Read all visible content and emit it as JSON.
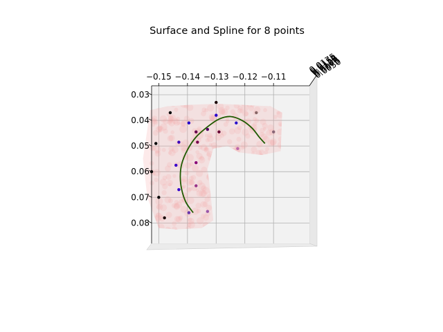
{
  "chart_data": {
    "type": "scatter",
    "title": "Surface and Spline for 8 points",
    "x_axis": {
      "ticks": [
        -0.15,
        -0.14,
        -0.13,
        -0.12,
        -0.11
      ],
      "tick_labels": [
        "−0.15",
        "−0.14",
        "−0.13",
        "−0.12",
        "−0.11"
      ],
      "range": [
        -0.1525,
        -0.0975
      ]
    },
    "y_axis": {
      "ticks": [
        0.03,
        0.04,
        0.05,
        0.06,
        0.07,
        0.08
      ],
      "tick_labels": [
        "0.03",
        "0.04",
        "0.05",
        "0.06",
        "0.07",
        "0.08"
      ],
      "range": [
        0.0265,
        0.088
      ],
      "inverted": true
    },
    "z_axis": {
      "tick_labels": [
        "0.0175",
        "0.0150",
        "0.0125",
        "0.0100",
        "0.0075",
        "0.0050"
      ],
      "note": "labels overlap in the image near the top-right corner"
    },
    "grid": true,
    "colors": {
      "surface": "#f4a0a0",
      "spline": "#1f5a00",
      "pane": "#f2f2f2"
    },
    "spline": {
      "points": [
        [
          -0.138,
          0.076
        ],
        [
          -0.1405,
          0.072
        ],
        [
          -0.142,
          0.067
        ],
        [
          -0.1425,
          0.062
        ],
        [
          -0.142,
          0.057
        ],
        [
          -0.14,
          0.0515
        ],
        [
          -0.137,
          0.0465
        ],
        [
          -0.133,
          0.0425
        ],
        [
          -0.129,
          0.0395
        ],
        [
          -0.125,
          0.0385
        ],
        [
          -0.121,
          0.04
        ],
        [
          -0.1175,
          0.043
        ],
        [
          -0.115,
          0.0465
        ],
        [
          -0.113,
          0.049
        ]
      ]
    },
    "points": [
      {
        "x": -0.146,
        "y": 0.037,
        "color": "#000000"
      },
      {
        "x": -0.13,
        "y": 0.033,
        "color": "#1a0000"
      },
      {
        "x": -0.151,
        "y": 0.049,
        "color": "#000000"
      },
      {
        "x": -0.1525,
        "y": 0.06,
        "color": "#000000"
      },
      {
        "x": -0.15,
        "y": 0.07,
        "color": "#000000"
      },
      {
        "x": -0.148,
        "y": 0.078,
        "color": "#1a0000"
      },
      {
        "x": -0.1395,
        "y": 0.041,
        "color": "#2200cc"
      },
      {
        "x": -0.13,
        "y": 0.038,
        "color": "#2a00cc"
      },
      {
        "x": -0.123,
        "y": 0.041,
        "color": "#2a10cc"
      },
      {
        "x": -0.143,
        "y": 0.0485,
        "color": "#3a00bb"
      },
      {
        "x": -0.144,
        "y": 0.0575,
        "color": "#3a00cc"
      },
      {
        "x": -0.143,
        "y": 0.067,
        "color": "#3300cc"
      },
      {
        "x": -0.1395,
        "y": 0.076,
        "color": "#6633aa"
      },
      {
        "x": -0.133,
        "y": 0.0435,
        "color": "#550066"
      },
      {
        "x": -0.137,
        "y": 0.0445,
        "color": "#66004d"
      },
      {
        "x": -0.1365,
        "y": 0.0485,
        "color": "#77004d"
      },
      {
        "x": -0.129,
        "y": 0.0445,
        "color": "#660033"
      },
      {
        "x": -0.137,
        "y": 0.0565,
        "color": "#880077"
      },
      {
        "x": -0.137,
        "y": 0.0655,
        "color": "#993388"
      },
      {
        "x": -0.133,
        "y": 0.0755,
        "color": "#9955aa"
      },
      {
        "x": -0.1225,
        "y": 0.051,
        "color": "#bb66aa"
      },
      {
        "x": -0.116,
        "y": 0.037,
        "color": "#886666"
      },
      {
        "x": -0.11,
        "y": 0.0445,
        "color": "#886677"
      }
    ],
    "surface": {
      "shape": "curved band (upper-left region plus left vertical strip)",
      "polygon": [
        [
          -0.153,
          0.036
        ],
        [
          -0.147,
          0.0345
        ],
        [
          -0.14,
          0.034
        ],
        [
          -0.13,
          0.0335
        ],
        [
          -0.12,
          0.034
        ],
        [
          -0.111,
          0.0345
        ],
        [
          -0.107,
          0.037
        ],
        [
          -0.1075,
          0.052
        ],
        [
          -0.114,
          0.0535
        ],
        [
          -0.122,
          0.0525
        ],
        [
          -0.126,
          0.05
        ],
        [
          -0.131,
          0.051
        ],
        [
          -0.133,
          0.059
        ],
        [
          -0.132,
          0.068
        ],
        [
          -0.131,
          0.079
        ],
        [
          -0.135,
          0.082
        ],
        [
          -0.144,
          0.0825
        ],
        [
          -0.15,
          0.082
        ],
        [
          -0.154,
          0.07
        ],
        [
          -0.1555,
          0.055
        ]
      ]
    }
  }
}
